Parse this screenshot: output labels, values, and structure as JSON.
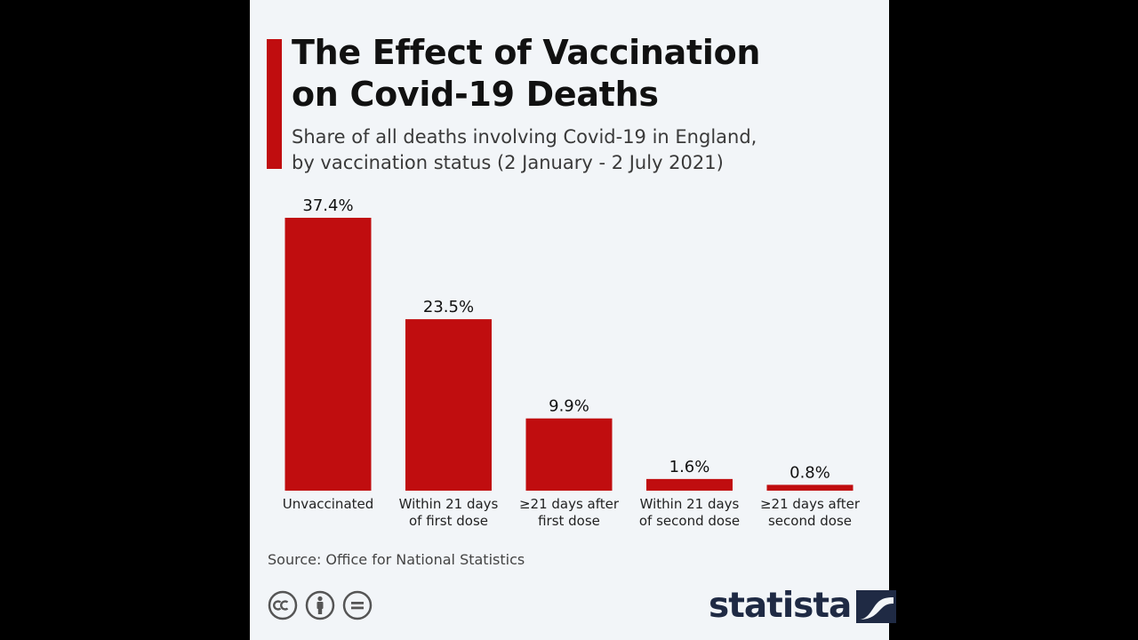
{
  "header": {
    "title_line1": "The Effect of Vaccination",
    "title_line2": "on Covid-19 Deaths",
    "subtitle_line1": "Share of all deaths involving Covid-19 in England,",
    "subtitle_line2": "by vaccination status (2 January - 2 July 2021)"
  },
  "chart_data": {
    "type": "bar",
    "categories": [
      [
        "Unvaccinated"
      ],
      [
        "Within 21 days",
        "of first dose"
      ],
      [
        "≥21 days after",
        "first dose"
      ],
      [
        "Within 21 days",
        "of second dose"
      ],
      [
        "≥21 days after",
        "second dose"
      ]
    ],
    "values": [
      37.4,
      23.5,
      9.9,
      1.6,
      0.8
    ],
    "value_labels": [
      "37.4%",
      "23.5%",
      "9.9%",
      "1.6%",
      "0.8%"
    ],
    "unit": "%",
    "title": "The Effect of Vaccination on Covid-19 Deaths",
    "xlabel": "",
    "ylabel": "",
    "ylim": [
      0,
      37.4
    ],
    "grid": false,
    "legend": "none",
    "bar_color": "#c00d0f"
  },
  "footer": {
    "source": "Source: Office for National Statistics",
    "license_icons": [
      "creative-commons-icon",
      "attribution-icon",
      "no-derivatives-icon"
    ],
    "brand": "statista"
  },
  "colors": {
    "accent": "#c00d0f",
    "panel_background": "#f2f5f8",
    "outer_background": "#000000",
    "brand": "#1f2a44"
  }
}
